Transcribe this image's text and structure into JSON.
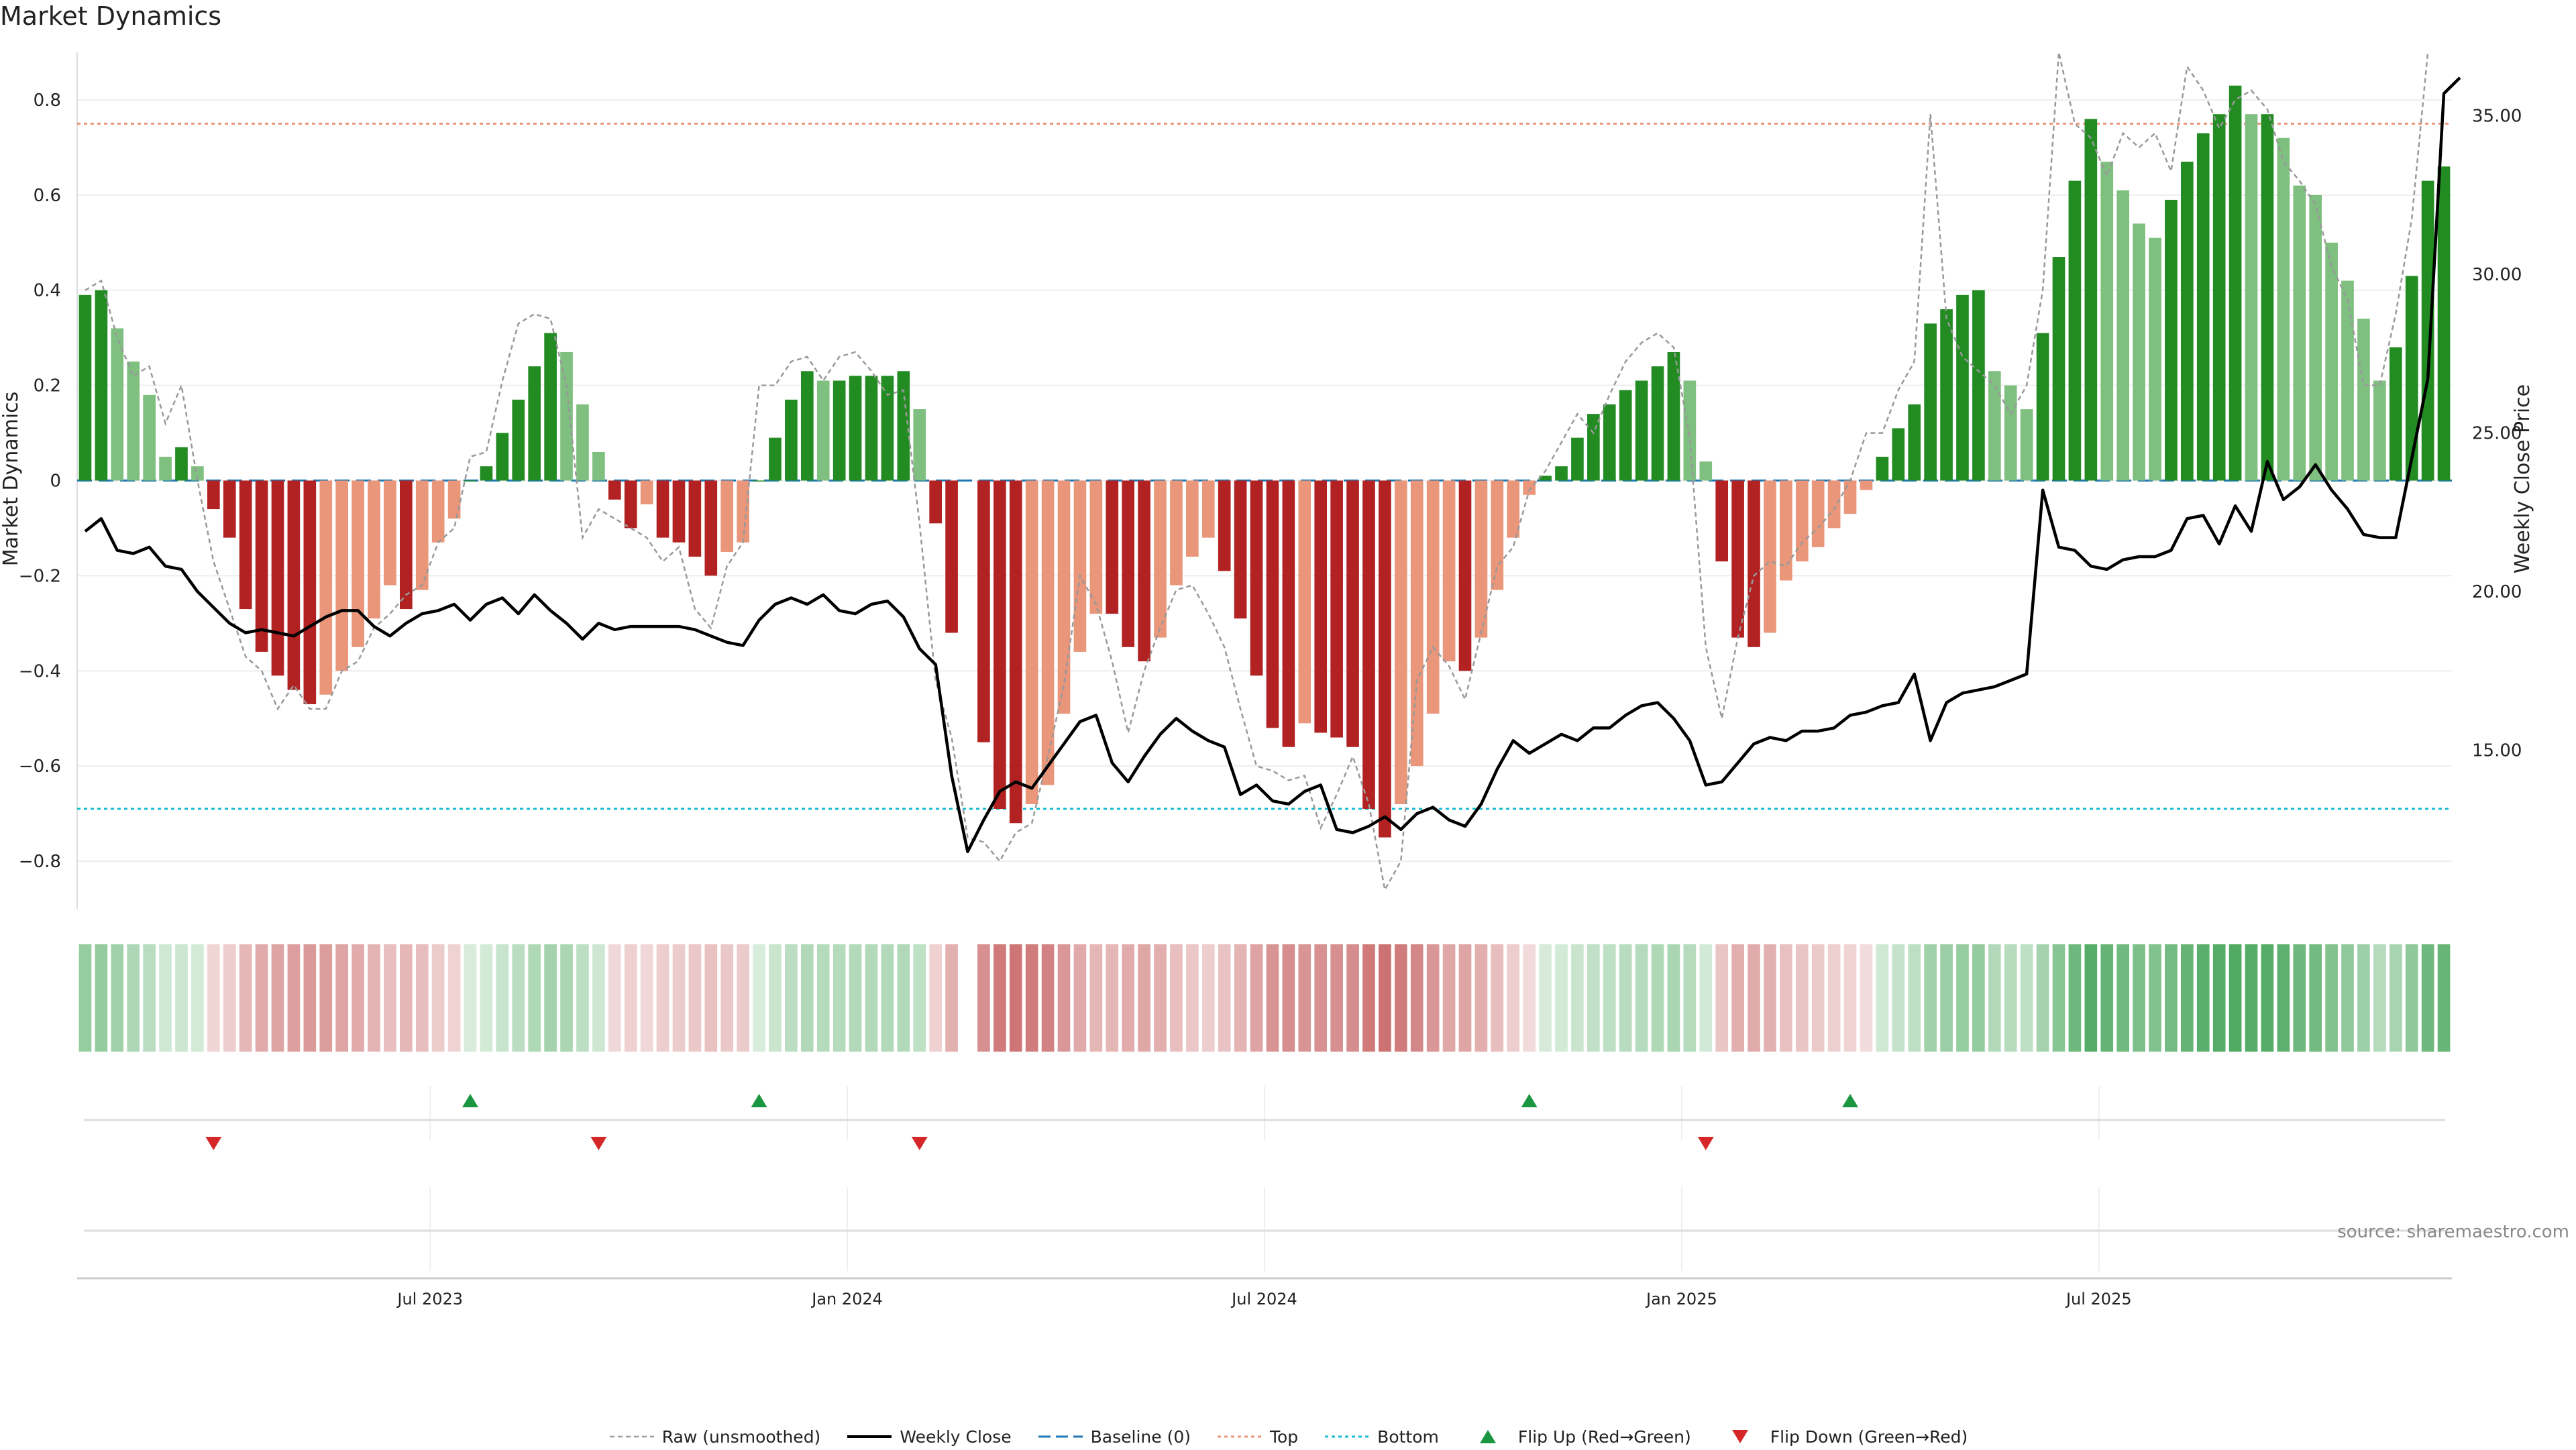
{
  "title": "Market Dynamics",
  "source": "source: sharemaestro.com",
  "colors": {
    "strong_green": "#228b22",
    "light_green": "#7fbf7f",
    "strong_red": "#b22222",
    "light_red": "#e9967a",
    "raw": "#999999",
    "close": "#000000",
    "baseline": "#1f77b4",
    "top": "#e9967a",
    "bottom": "#17becf",
    "flip_up": "#1a9641",
    "flip_down": "#d62728"
  },
  "chart_data": {
    "type": "bar",
    "title": "Market Dynamics",
    "ylabel": "Market Dynamics",
    "y2label": "Weekly Close Price",
    "ylim": [
      -0.9,
      0.9
    ],
    "y2lim": [
      10.0,
      37.0
    ],
    "yticks": [
      "0.8",
      "0.6",
      "0.4",
      "0.2",
      "0",
      "−0.2",
      "−0.4",
      "−0.6",
      "−0.8"
    ],
    "ytick_values": [
      0.8,
      0.6,
      0.4,
      0.2,
      0,
      -0.2,
      -0.4,
      -0.6,
      -0.8
    ],
    "y2ticks": [
      "35.00",
      "30.00",
      "25.00",
      "20.00",
      "15.00"
    ],
    "y2tick_values": [
      35,
      30,
      25,
      20,
      15
    ],
    "xticks": [
      "Jul 2023",
      "Jan 2024",
      "Jul 2024",
      "Jan 2025",
      "Jul 2025"
    ],
    "xtick_weeks": [
      22,
      48,
      74,
      100,
      126
    ],
    "top_level": 0.75,
    "bottom_level": -0.69,
    "baseline": 0,
    "weeks": 148,
    "bar_values": [
      0.39,
      0.4,
      0.32,
      0.25,
      0.18,
      0.05,
      0.07,
      0.03,
      -0.06,
      -0.12,
      -0.27,
      -0.36,
      -0.41,
      -0.44,
      -0.47,
      -0.45,
      -0.4,
      -0.35,
      -0.29,
      -0.22,
      -0.27,
      -0.23,
      -0.13,
      -0.08,
      0.0,
      0.03,
      0.1,
      0.17,
      0.24,
      0.31,
      0.27,
      0.16,
      0.06,
      -0.04,
      -0.1,
      -0.05,
      -0.12,
      -0.13,
      -0.16,
      -0.2,
      -0.15,
      -0.13,
      0.0,
      0.09,
      0.17,
      0.23,
      0.21,
      0.21,
      0.22,
      0.22,
      0.22,
      0.23,
      0.15,
      -0.09,
      -0.32,
      null,
      -0.55,
      -0.69,
      -0.72,
      -0.68,
      -0.64,
      -0.49,
      -0.36,
      -0.28,
      -0.28,
      -0.35,
      -0.38,
      -0.33,
      -0.22,
      -0.16,
      -0.12,
      -0.19,
      -0.29,
      -0.41,
      -0.52,
      -0.56,
      -0.51,
      -0.53,
      -0.54,
      -0.56,
      -0.69,
      -0.75,
      -0.68,
      -0.6,
      -0.49,
      -0.38,
      -0.4,
      -0.33,
      -0.23,
      -0.12,
      -0.03,
      0.01,
      0.03,
      0.09,
      0.14,
      0.16,
      0.19,
      0.21,
      0.24,
      0.27,
      0.21,
      0.04,
      -0.17,
      -0.33,
      -0.35,
      -0.32,
      -0.21,
      -0.17,
      -0.14,
      -0.1,
      -0.07,
      -0.02,
      0.05,
      0.11,
      0.16,
      0.33,
      0.36,
      0.39,
      0.4,
      0.23,
      0.2,
      0.15,
      0.31,
      0.47,
      0.63,
      0.76,
      0.67,
      0.61,
      0.54,
      0.51,
      0.59,
      0.67,
      0.73,
      0.77,
      0.83,
      0.77,
      0.77,
      0.72,
      0.62,
      0.6,
      0.5,
      0.42,
      0.34,
      0.21,
      0.28,
      0.43,
      0.63,
      0.66
    ],
    "close": [
      21.9,
      22.3,
      21.3,
      21.2,
      21.4,
      20.8,
      20.7,
      20.0,
      19.5,
      19.0,
      18.7,
      18.8,
      18.7,
      18.6,
      18.9,
      19.2,
      19.4,
      19.4,
      18.9,
      18.6,
      19.0,
      19.3,
      19.4,
      19.6,
      19.1,
      19.6,
      19.8,
      19.3,
      19.9,
      19.4,
      19.0,
      18.5,
      19.0,
      18.8,
      18.9,
      18.9,
      18.9,
      18.9,
      18.8,
      18.6,
      18.4,
      18.3,
      19.1,
      19.6,
      19.8,
      19.6,
      19.9,
      19.4,
      19.3,
      19.6,
      19.7,
      19.2,
      18.2,
      17.7,
      14.2,
      11.8,
      12.8,
      13.7,
      14.0,
      13.8,
      14.5,
      15.2,
      15.9,
      16.1,
      14.6,
      14.0,
      14.8,
      15.5,
      16.0,
      15.6,
      15.3,
      15.1,
      13.6,
      13.9,
      13.4,
      13.3,
      13.7,
      13.9,
      12.5,
      12.4,
      12.6,
      12.9,
      12.5,
      13.0,
      13.2,
      12.8,
      12.6,
      13.3,
      14.4,
      15.3,
      14.9,
      15.2,
      15.5,
      15.3,
      15.7,
      15.7,
      16.1,
      16.4,
      16.5,
      16.0,
      15.3,
      13.9,
      14.0,
      14.6,
      15.2,
      15.4,
      15.3,
      15.6,
      15.6,
      15.7,
      16.1,
      16.2,
      16.4,
      16.5,
      17.4,
      15.3,
      16.5,
      16.8,
      16.9,
      17.0,
      17.2,
      17.4,
      23.2,
      21.4,
      21.3,
      20.8,
      20.7,
      21.0,
      21.1,
      21.1,
      21.3,
      22.3,
      22.4,
      21.5,
      22.7,
      21.9,
      24.1,
      22.9,
      23.3,
      24.0,
      23.2,
      22.6,
      21.8,
      21.7,
      21.7,
      24.2,
      26.7,
      35.7,
      36.2
    ],
    "raw": [
      0.4,
      0.42,
      0.3,
      0.22,
      0.24,
      0.12,
      0.2,
      0.0,
      -0.17,
      -0.27,
      -0.37,
      -0.4,
      -0.48,
      -0.43,
      -0.48,
      -0.48,
      -0.4,
      -0.38,
      -0.31,
      -0.28,
      -0.24,
      -0.22,
      -0.13,
      -0.1,
      0.05,
      0.06,
      0.21,
      0.33,
      0.35,
      0.34,
      0.2,
      -0.12,
      -0.06,
      -0.08,
      -0.1,
      -0.12,
      -0.17,
      -0.14,
      -0.27,
      -0.31,
      -0.18,
      -0.13,
      0.2,
      0.2,
      0.25,
      0.26,
      0.21,
      0.26,
      0.27,
      0.23,
      0.18,
      0.19,
      -0.09,
      -0.42,
      -0.54,
      -0.75,
      -0.76,
      -0.8,
      -0.74,
      -0.72,
      -0.58,
      -0.43,
      -0.2,
      -0.26,
      -0.38,
      -0.53,
      -0.4,
      -0.31,
      -0.23,
      -0.22,
      -0.28,
      -0.35,
      -0.48,
      -0.6,
      -0.61,
      -0.63,
      -0.62,
      -0.73,
      -0.66,
      -0.58,
      -0.68,
      -0.86,
      -0.8,
      -0.42,
      -0.35,
      -0.39,
      -0.46,
      -0.32,
      -0.18,
      -0.14,
      -0.02,
      0.02,
      0.08,
      0.14,
      0.1,
      0.18,
      0.25,
      0.29,
      0.31,
      0.28,
      0.09,
      -0.35,
      -0.5,
      -0.33,
      -0.2,
      -0.17,
      -0.18,
      -0.13,
      -0.1,
      -0.06,
      0.0,
      0.1,
      0.1,
      0.19,
      0.25,
      0.77,
      0.34,
      0.26,
      0.23,
      0.2,
      0.14,
      0.2,
      0.4,
      0.9,
      0.75,
      0.72,
      0.64,
      0.73,
      0.7,
      0.73,
      0.65,
      0.87,
      0.82,
      0.74,
      0.8,
      0.82,
      0.78,
      0.67,
      0.63,
      0.58,
      0.45,
      0.38,
      0.2,
      0.2,
      0.35,
      0.55,
      0.9
    ],
    "heat_values": [
      0.39,
      0.4,
      0.32,
      0.25,
      0.18,
      0.05,
      0.07,
      0.03,
      -0.06,
      -0.12,
      -0.27,
      -0.36,
      -0.41,
      -0.44,
      -0.47,
      -0.45,
      -0.4,
      -0.35,
      -0.29,
      -0.22,
      -0.27,
      -0.23,
      -0.13,
      -0.08,
      0.0,
      0.03,
      0.1,
      0.17,
      0.24,
      0.31,
      0.27,
      0.16,
      0.06,
      -0.04,
      -0.1,
      -0.05,
      -0.12,
      -0.13,
      -0.16,
      -0.2,
      -0.15,
      -0.13,
      0.0,
      0.09,
      0.17,
      0.23,
      0.21,
      0.21,
      0.22,
      0.22,
      0.22,
      0.23,
      0.15,
      -0.09,
      -0.32,
      null,
      -0.55,
      -0.69,
      -0.72,
      -0.68,
      -0.64,
      -0.49,
      -0.36,
      -0.28,
      -0.28,
      -0.35,
      -0.38,
      -0.33,
      -0.22,
      -0.16,
      -0.12,
      -0.19,
      -0.29,
      -0.41,
      -0.52,
      -0.56,
      -0.51,
      -0.53,
      -0.54,
      -0.56,
      -0.69,
      -0.75,
      -0.68,
      -0.6,
      -0.49,
      -0.38,
      -0.4,
      -0.33,
      -0.23,
      -0.12,
      -0.03,
      0.01,
      0.03,
      0.09,
      0.14,
      0.16,
      0.19,
      0.21,
      0.24,
      0.27,
      0.21,
      0.04,
      -0.17,
      -0.33,
      -0.35,
      -0.32,
      -0.21,
      -0.17,
      -0.14,
      -0.1,
      -0.07,
      -0.02,
      0.05,
      0.11,
      0.16,
      0.33,
      0.36,
      0.39,
      0.4,
      0.23,
      0.2,
      0.15,
      0.31,
      0.47,
      0.63,
      0.76,
      0.67,
      0.61,
      0.54,
      0.51,
      0.59,
      0.67,
      0.73,
      0.77,
      0.83,
      0.77,
      0.77,
      0.72,
      0.62,
      0.6,
      0.5,
      0.42,
      0.34,
      0.21,
      0.28,
      0.43,
      0.63,
      0.66
    ],
    "flip_up_weeks": [
      24,
      42,
      90,
      110
    ],
    "flip_down_weeks": [
      8,
      32,
      52,
      101
    ],
    "legend": [
      {
        "key": "raw",
        "label": "Raw (unsmoothed)"
      },
      {
        "key": "close",
        "label": "Weekly Close"
      },
      {
        "key": "baseline",
        "label": "Baseline (0)"
      },
      {
        "key": "top",
        "label": "Top"
      },
      {
        "key": "bottom",
        "label": "Bottom"
      },
      {
        "key": "flip_up",
        "label": "Flip Up (Red→Green)"
      },
      {
        "key": "flip_down",
        "label": "Flip Down (Green→Red)"
      }
    ],
    "legend_placement": "bottom-center"
  }
}
